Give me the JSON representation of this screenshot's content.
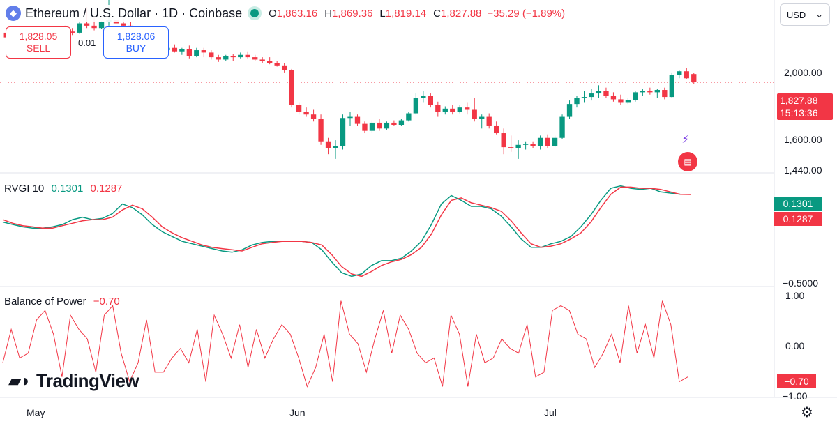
{
  "header": {
    "symbol": "Ethereum / U.S. Dollar · 1D · Coinbase",
    "open_label": "O",
    "open": "1,863.16",
    "high_label": "H",
    "high": "1,869.36",
    "low_label": "L",
    "low": "1,819.14",
    "close_label": "C",
    "close": "1,827.88",
    "change": "−35.29 (−1.89%)"
  },
  "currency_button": {
    "label": "USD"
  },
  "trade": {
    "sell_price": "1,828.05",
    "sell_label": "SELL",
    "spread": "0.01",
    "buy_price": "1,828.06",
    "buy_label": "BUY"
  },
  "price_axis": {
    "ticks": [
      "2,000.00",
      "1,600.00",
      "1,440.00"
    ],
    "last_price": "1,827.88",
    "countdown": "15:13:36"
  },
  "rvgi": {
    "name": "RVGI",
    "length": "10",
    "value_green": "0.1301",
    "value_red": "0.1287",
    "axis_tick": "−0.5000"
  },
  "bop": {
    "name": "Balance of Power",
    "value": "−0.70",
    "axis_ticks": [
      "1.00",
      "0.00",
      "−1.00"
    ]
  },
  "time_axis": {
    "labels": [
      "May",
      "Jun",
      "Jul"
    ]
  },
  "branding": {
    "logo_text": "TradingView"
  },
  "icons": [
    "ethereum-icon",
    "market-status-dot",
    "chevron-down-icon",
    "alert-badge-icon",
    "us-flag-icon",
    "gear-icon"
  ],
  "colors": {
    "up": "#089981",
    "down": "#f23645",
    "rvgi_green": "#089981",
    "rvgi_red": "#f23645",
    "bop_line": "#f23645"
  },
  "chart_data": [
    {
      "type": "candlestick",
      "title": "Ethereum / U.S. Dollar · 1D · Coinbase",
      "y_ticks": [
        2000,
        1600,
        1440
      ],
      "ylim": [
        1440,
        2180
      ],
      "x_labels": [
        "May",
        "Jun",
        "Jul"
      ],
      "candles": [
        {
          "o": 2040,
          "h": 2060,
          "l": 2010,
          "c": 2020
        },
        {
          "o": 2020,
          "h": 2040,
          "l": 1990,
          "c": 1995
        },
        {
          "o": 1995,
          "h": 2030,
          "l": 1985,
          "c": 2010
        },
        {
          "o": 2010,
          "h": 2050,
          "l": 2000,
          "c": 2040
        },
        {
          "o": 2040,
          "h": 2060,
          "l": 2020,
          "c": 2030
        },
        {
          "o": 2030,
          "h": 2045,
          "l": 2010,
          "c": 2015
        },
        {
          "o": 2015,
          "h": 2030,
          "l": 2005,
          "c": 2020
        },
        {
          "o": 2020,
          "h": 2060,
          "l": 2015,
          "c": 2055
        },
        {
          "o": 2055,
          "h": 2070,
          "l": 2040,
          "c": 2045
        },
        {
          "o": 2045,
          "h": 2060,
          "l": 2030,
          "c": 2040
        },
        {
          "o": 2040,
          "h": 2090,
          "l": 2035,
          "c": 2080
        },
        {
          "o": 2080,
          "h": 2150,
          "l": 2060,
          "c": 2070
        },
        {
          "o": 2070,
          "h": 2110,
          "l": 2050,
          "c": 2060
        },
        {
          "o": 2060,
          "h": 2090,
          "l": 2055,
          "c": 2085
        },
        {
          "o": 2085,
          "h": 2180,
          "l": 2070,
          "c": 2095
        },
        {
          "o": 2095,
          "h": 2120,
          "l": 2070,
          "c": 2080
        },
        {
          "o": 2080,
          "h": 2100,
          "l": 2060,
          "c": 2070
        },
        {
          "o": 2070,
          "h": 2085,
          "l": 2020,
          "c": 2025
        },
        {
          "o": 2025,
          "h": 2035,
          "l": 1970,
          "c": 1975
        },
        {
          "o": 1975,
          "h": 1990,
          "l": 1950,
          "c": 1960
        },
        {
          "o": 1960,
          "h": 1980,
          "l": 1950,
          "c": 1975
        },
        {
          "o": 1975,
          "h": 1985,
          "l": 1955,
          "c": 1965
        },
        {
          "o": 1965,
          "h": 1980,
          "l": 1955,
          "c": 1975
        },
        {
          "o": 1975,
          "h": 1990,
          "l": 1955,
          "c": 1960
        },
        {
          "o": 1960,
          "h": 1975,
          "l": 1945,
          "c": 1970
        },
        {
          "o": 1970,
          "h": 1985,
          "l": 1930,
          "c": 1940
        },
        {
          "o": 1940,
          "h": 1975,
          "l": 1935,
          "c": 1965
        },
        {
          "o": 1965,
          "h": 1975,
          "l": 1935,
          "c": 1955
        },
        {
          "o": 1955,
          "h": 1965,
          "l": 1925,
          "c": 1935
        },
        {
          "o": 1935,
          "h": 1945,
          "l": 1915,
          "c": 1925
        },
        {
          "o": 1925,
          "h": 1945,
          "l": 1920,
          "c": 1940
        },
        {
          "o": 1940,
          "h": 1950,
          "l": 1920,
          "c": 1935
        },
        {
          "o": 1935,
          "h": 1955,
          "l": 1930,
          "c": 1945
        },
        {
          "o": 1945,
          "h": 1960,
          "l": 1930,
          "c": 1935
        },
        {
          "o": 1935,
          "h": 1945,
          "l": 1920,
          "c": 1925
        },
        {
          "o": 1925,
          "h": 1935,
          "l": 1910,
          "c": 1920
        },
        {
          "o": 1920,
          "h": 1935,
          "l": 1905,
          "c": 1910
        },
        {
          "o": 1910,
          "h": 1920,
          "l": 1895,
          "c": 1900
        },
        {
          "o": 1900,
          "h": 1910,
          "l": 1870,
          "c": 1880
        },
        {
          "o": 1880,
          "h": 1885,
          "l": 1720,
          "c": 1730
        },
        {
          "o": 1730,
          "h": 1740,
          "l": 1690,
          "c": 1700
        },
        {
          "o": 1700,
          "h": 1720,
          "l": 1680,
          "c": 1690
        },
        {
          "o": 1690,
          "h": 1710,
          "l": 1660,
          "c": 1670
        },
        {
          "o": 1670,
          "h": 1690,
          "l": 1560,
          "c": 1575
        },
        {
          "o": 1575,
          "h": 1590,
          "l": 1520,
          "c": 1545
        },
        {
          "o": 1545,
          "h": 1580,
          "l": 1500,
          "c": 1555
        },
        {
          "o": 1555,
          "h": 1690,
          "l": 1540,
          "c": 1675
        },
        {
          "o": 1675,
          "h": 1700,
          "l": 1640,
          "c": 1680
        },
        {
          "o": 1680,
          "h": 1690,
          "l": 1640,
          "c": 1650
        },
        {
          "o": 1650,
          "h": 1660,
          "l": 1610,
          "c": 1620
        },
        {
          "o": 1620,
          "h": 1665,
          "l": 1610,
          "c": 1655
        },
        {
          "o": 1655,
          "h": 1670,
          "l": 1620,
          "c": 1630
        },
        {
          "o": 1630,
          "h": 1660,
          "l": 1625,
          "c": 1655
        },
        {
          "o": 1655,
          "h": 1665,
          "l": 1640,
          "c": 1645
        },
        {
          "o": 1645,
          "h": 1670,
          "l": 1640,
          "c": 1665
        },
        {
          "o": 1665,
          "h": 1700,
          "l": 1660,
          "c": 1695
        },
        {
          "o": 1695,
          "h": 1780,
          "l": 1690,
          "c": 1760
        },
        {
          "o": 1760,
          "h": 1790,
          "l": 1740,
          "c": 1770
        },
        {
          "o": 1770,
          "h": 1780,
          "l": 1720,
          "c": 1730
        },
        {
          "o": 1730,
          "h": 1745,
          "l": 1680,
          "c": 1700
        },
        {
          "o": 1700,
          "h": 1725,
          "l": 1690,
          "c": 1715
        },
        {
          "o": 1715,
          "h": 1730,
          "l": 1690,
          "c": 1700
        },
        {
          "o": 1700,
          "h": 1730,
          "l": 1695,
          "c": 1720
        },
        {
          "o": 1720,
          "h": 1740,
          "l": 1690,
          "c": 1710
        },
        {
          "o": 1710,
          "h": 1760,
          "l": 1660,
          "c": 1670
        },
        {
          "o": 1670,
          "h": 1690,
          "l": 1630,
          "c": 1680
        },
        {
          "o": 1680,
          "h": 1695,
          "l": 1630,
          "c": 1640
        },
        {
          "o": 1640,
          "h": 1660,
          "l": 1605,
          "c": 1610
        },
        {
          "o": 1610,
          "h": 1630,
          "l": 1520,
          "c": 1550
        },
        {
          "o": 1550,
          "h": 1600,
          "l": 1530,
          "c": 1545
        },
        {
          "o": 1545,
          "h": 1580,
          "l": 1500,
          "c": 1560
        },
        {
          "o": 1560,
          "h": 1575,
          "l": 1540,
          "c": 1565
        },
        {
          "o": 1565,
          "h": 1575,
          "l": 1545,
          "c": 1555
        },
        {
          "o": 1555,
          "h": 1600,
          "l": 1540,
          "c": 1590
        },
        {
          "o": 1590,
          "h": 1605,
          "l": 1545,
          "c": 1555
        },
        {
          "o": 1555,
          "h": 1600,
          "l": 1550,
          "c": 1590
        },
        {
          "o": 1590,
          "h": 1690,
          "l": 1585,
          "c": 1680
        },
        {
          "o": 1680,
          "h": 1750,
          "l": 1670,
          "c": 1735
        },
        {
          "o": 1735,
          "h": 1770,
          "l": 1720,
          "c": 1760
        },
        {
          "o": 1760,
          "h": 1790,
          "l": 1740,
          "c": 1765
        },
        {
          "o": 1765,
          "h": 1800,
          "l": 1750,
          "c": 1780
        },
        {
          "o": 1780,
          "h": 1815,
          "l": 1760,
          "c": 1790
        },
        {
          "o": 1790,
          "h": 1805,
          "l": 1760,
          "c": 1770
        },
        {
          "o": 1770,
          "h": 1785,
          "l": 1745,
          "c": 1755
        },
        {
          "o": 1755,
          "h": 1775,
          "l": 1730,
          "c": 1740
        },
        {
          "o": 1740,
          "h": 1760,
          "l": 1735,
          "c": 1752
        },
        {
          "o": 1752,
          "h": 1790,
          "l": 1745,
          "c": 1785
        },
        {
          "o": 1785,
          "h": 1800,
          "l": 1770,
          "c": 1792
        },
        {
          "o": 1792,
          "h": 1805,
          "l": 1775,
          "c": 1785
        },
        {
          "o": 1785,
          "h": 1800,
          "l": 1760,
          "c": 1795
        },
        {
          "o": 1795,
          "h": 1805,
          "l": 1755,
          "c": 1765
        },
        {
          "o": 1765,
          "h": 1870,
          "l": 1760,
          "c": 1860
        },
        {
          "o": 1860,
          "h": 1880,
          "l": 1845,
          "c": 1875
        },
        {
          "o": 1875,
          "h": 1890,
          "l": 1840,
          "c": 1845
        },
        {
          "o": 1863.16,
          "h": 1869.36,
          "l": 1819.14,
          "c": 1827.88
        }
      ],
      "last_price": 1827.88
    },
    {
      "type": "line",
      "title": "RVGI 10",
      "ylim": [
        -0.6,
        0.25
      ],
      "y_ticks": [
        -0.5
      ],
      "series": [
        {
          "name": "RVGI",
          "color": "#089981",
          "values": [
            -0.1,
            -0.12,
            -0.14,
            -0.15,
            -0.15,
            -0.14,
            -0.12,
            -0.08,
            -0.06,
            -0.08,
            -0.07,
            -0.03,
            0.05,
            0.02,
            -0.04,
            -0.12,
            -0.18,
            -0.22,
            -0.26,
            -0.28,
            -0.3,
            -0.32,
            -0.34,
            -0.35,
            -0.33,
            -0.29,
            -0.27,
            -0.26,
            -0.26,
            -0.26,
            -0.26,
            -0.27,
            -0.33,
            -0.43,
            -0.52,
            -0.55,
            -0.53,
            -0.46,
            -0.42,
            -0.42,
            -0.4,
            -0.34,
            -0.26,
            -0.12,
            0.05,
            0.12,
            0.08,
            0.03,
            0.03,
            0.01,
            -0.05,
            -0.14,
            -0.24,
            -0.31,
            -0.31,
            -0.28,
            -0.26,
            -0.22,
            -0.14,
            -0.04,
            0.08,
            0.18,
            0.2,
            0.18,
            0.17,
            0.18,
            0.15,
            0.14,
            0.13,
            0.1301
          ]
        },
        {
          "name": "Signal",
          "color": "#f23645",
          "values": [
            -0.08,
            -0.11,
            -0.13,
            -0.14,
            -0.15,
            -0.15,
            -0.13,
            -0.11,
            -0.09,
            -0.08,
            -0.08,
            -0.06,
            0.0,
            0.04,
            0.01,
            -0.06,
            -0.14,
            -0.19,
            -0.23,
            -0.26,
            -0.29,
            -0.31,
            -0.32,
            -0.33,
            -0.34,
            -0.31,
            -0.28,
            -0.27,
            -0.26,
            -0.26,
            -0.26,
            -0.27,
            -0.29,
            -0.37,
            -0.47,
            -0.53,
            -0.55,
            -0.51,
            -0.46,
            -0.43,
            -0.41,
            -0.37,
            -0.31,
            -0.2,
            -0.04,
            0.08,
            0.1,
            0.06,
            0.04,
            0.02,
            -0.01,
            -0.09,
            -0.19,
            -0.28,
            -0.31,
            -0.3,
            -0.28,
            -0.24,
            -0.19,
            -0.1,
            0.02,
            0.13,
            0.19,
            0.19,
            0.18,
            0.18,
            0.17,
            0.15,
            0.13,
            0.1287
          ]
        }
      ]
    },
    {
      "type": "line",
      "title": "Balance of Power",
      "ylim": [
        -1.1,
        1.1
      ],
      "y_ticks": [
        1.0,
        0.0,
        -1.0
      ],
      "series": [
        {
          "name": "Balance of Power",
          "color": "#f23645",
          "values": [
            -0.4,
            0.3,
            -0.3,
            -0.2,
            0.5,
            0.7,
            0.2,
            -0.7,
            0.6,
            0.3,
            0.1,
            -0.6,
            0.6,
            0.8,
            -0.2,
            -0.8,
            -0.4,
            0.5,
            -0.6,
            -0.6,
            -0.3,
            -0.1,
            -0.4,
            0.3,
            -0.8,
            0.6,
            0.2,
            -0.3,
            0.4,
            -0.5,
            0.3,
            -0.3,
            0.1,
            0.4,
            0.2,
            -0.3,
            -0.9,
            -0.5,
            0.2,
            -0.8,
            0.9,
            0.2,
            0.0,
            -0.6,
            0.1,
            0.7,
            -0.2,
            0.6,
            0.3,
            -0.2,
            -0.4,
            -0.3,
            -0.9,
            0.6,
            0.2,
            -0.9,
            0.2,
            -0.4,
            -0.3,
            0.1,
            -0.1,
            -0.2,
            0.4,
            -0.7,
            -0.6,
            0.7,
            0.8,
            0.7,
            0.2,
            0.1,
            -0.5,
            -0.2,
            0.2,
            -0.4,
            0.8,
            -0.2,
            0.4,
            -0.3,
            0.9,
            0.4,
            -0.8,
            -0.7
          ]
        }
      ]
    }
  ]
}
